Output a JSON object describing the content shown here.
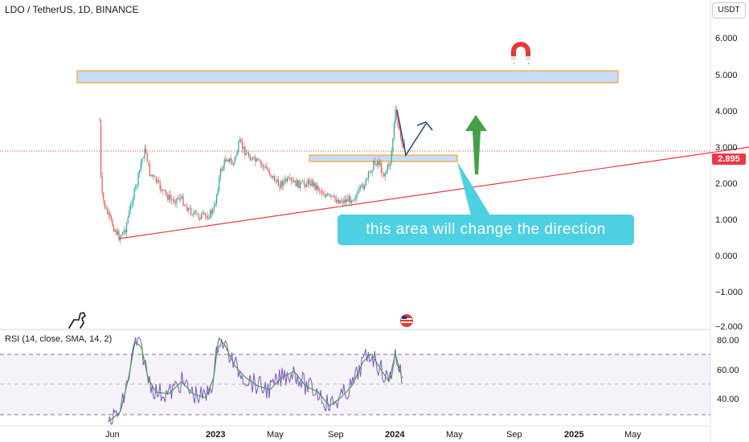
{
  "header": {
    "title": "LDO / TetherUS, 1D, BINANCE",
    "currency": "USDT"
  },
  "price_axis": {
    "labels": [
      "6.000",
      "5.000",
      "4.000",
      "3.000",
      "2.000",
      "1.000",
      "0.000",
      "−1.000",
      "−2.000"
    ],
    "current_price": "2.895"
  },
  "rsi_panel": {
    "label": "RSI (14, close, SMA, 14, 2)",
    "labels": [
      "80.00",
      "60.00",
      "40.00"
    ]
  },
  "time_axis": {
    "labels": [
      "Jun",
      "2023",
      "May",
      "Sep",
      "2024",
      "May",
      "Sep",
      "2025",
      "May"
    ]
  },
  "annotation": {
    "callout_text": "this area will change the direction"
  },
  "colors": {
    "candle_up": "#26a69a",
    "candle_down": "#ef5350",
    "trendline": "#f23645",
    "zone_fill": "#c8dcf8",
    "zone_border": "#f5a623",
    "callout": "#4dd0e1",
    "arrow_green": "#43a047",
    "rsi_line": "#7e57c2",
    "rsi_ma": "#43a047"
  },
  "icons": {
    "magnet": "magnet-icon",
    "dino": "dinosaur-icon",
    "flag": "us-flag-icon"
  }
}
